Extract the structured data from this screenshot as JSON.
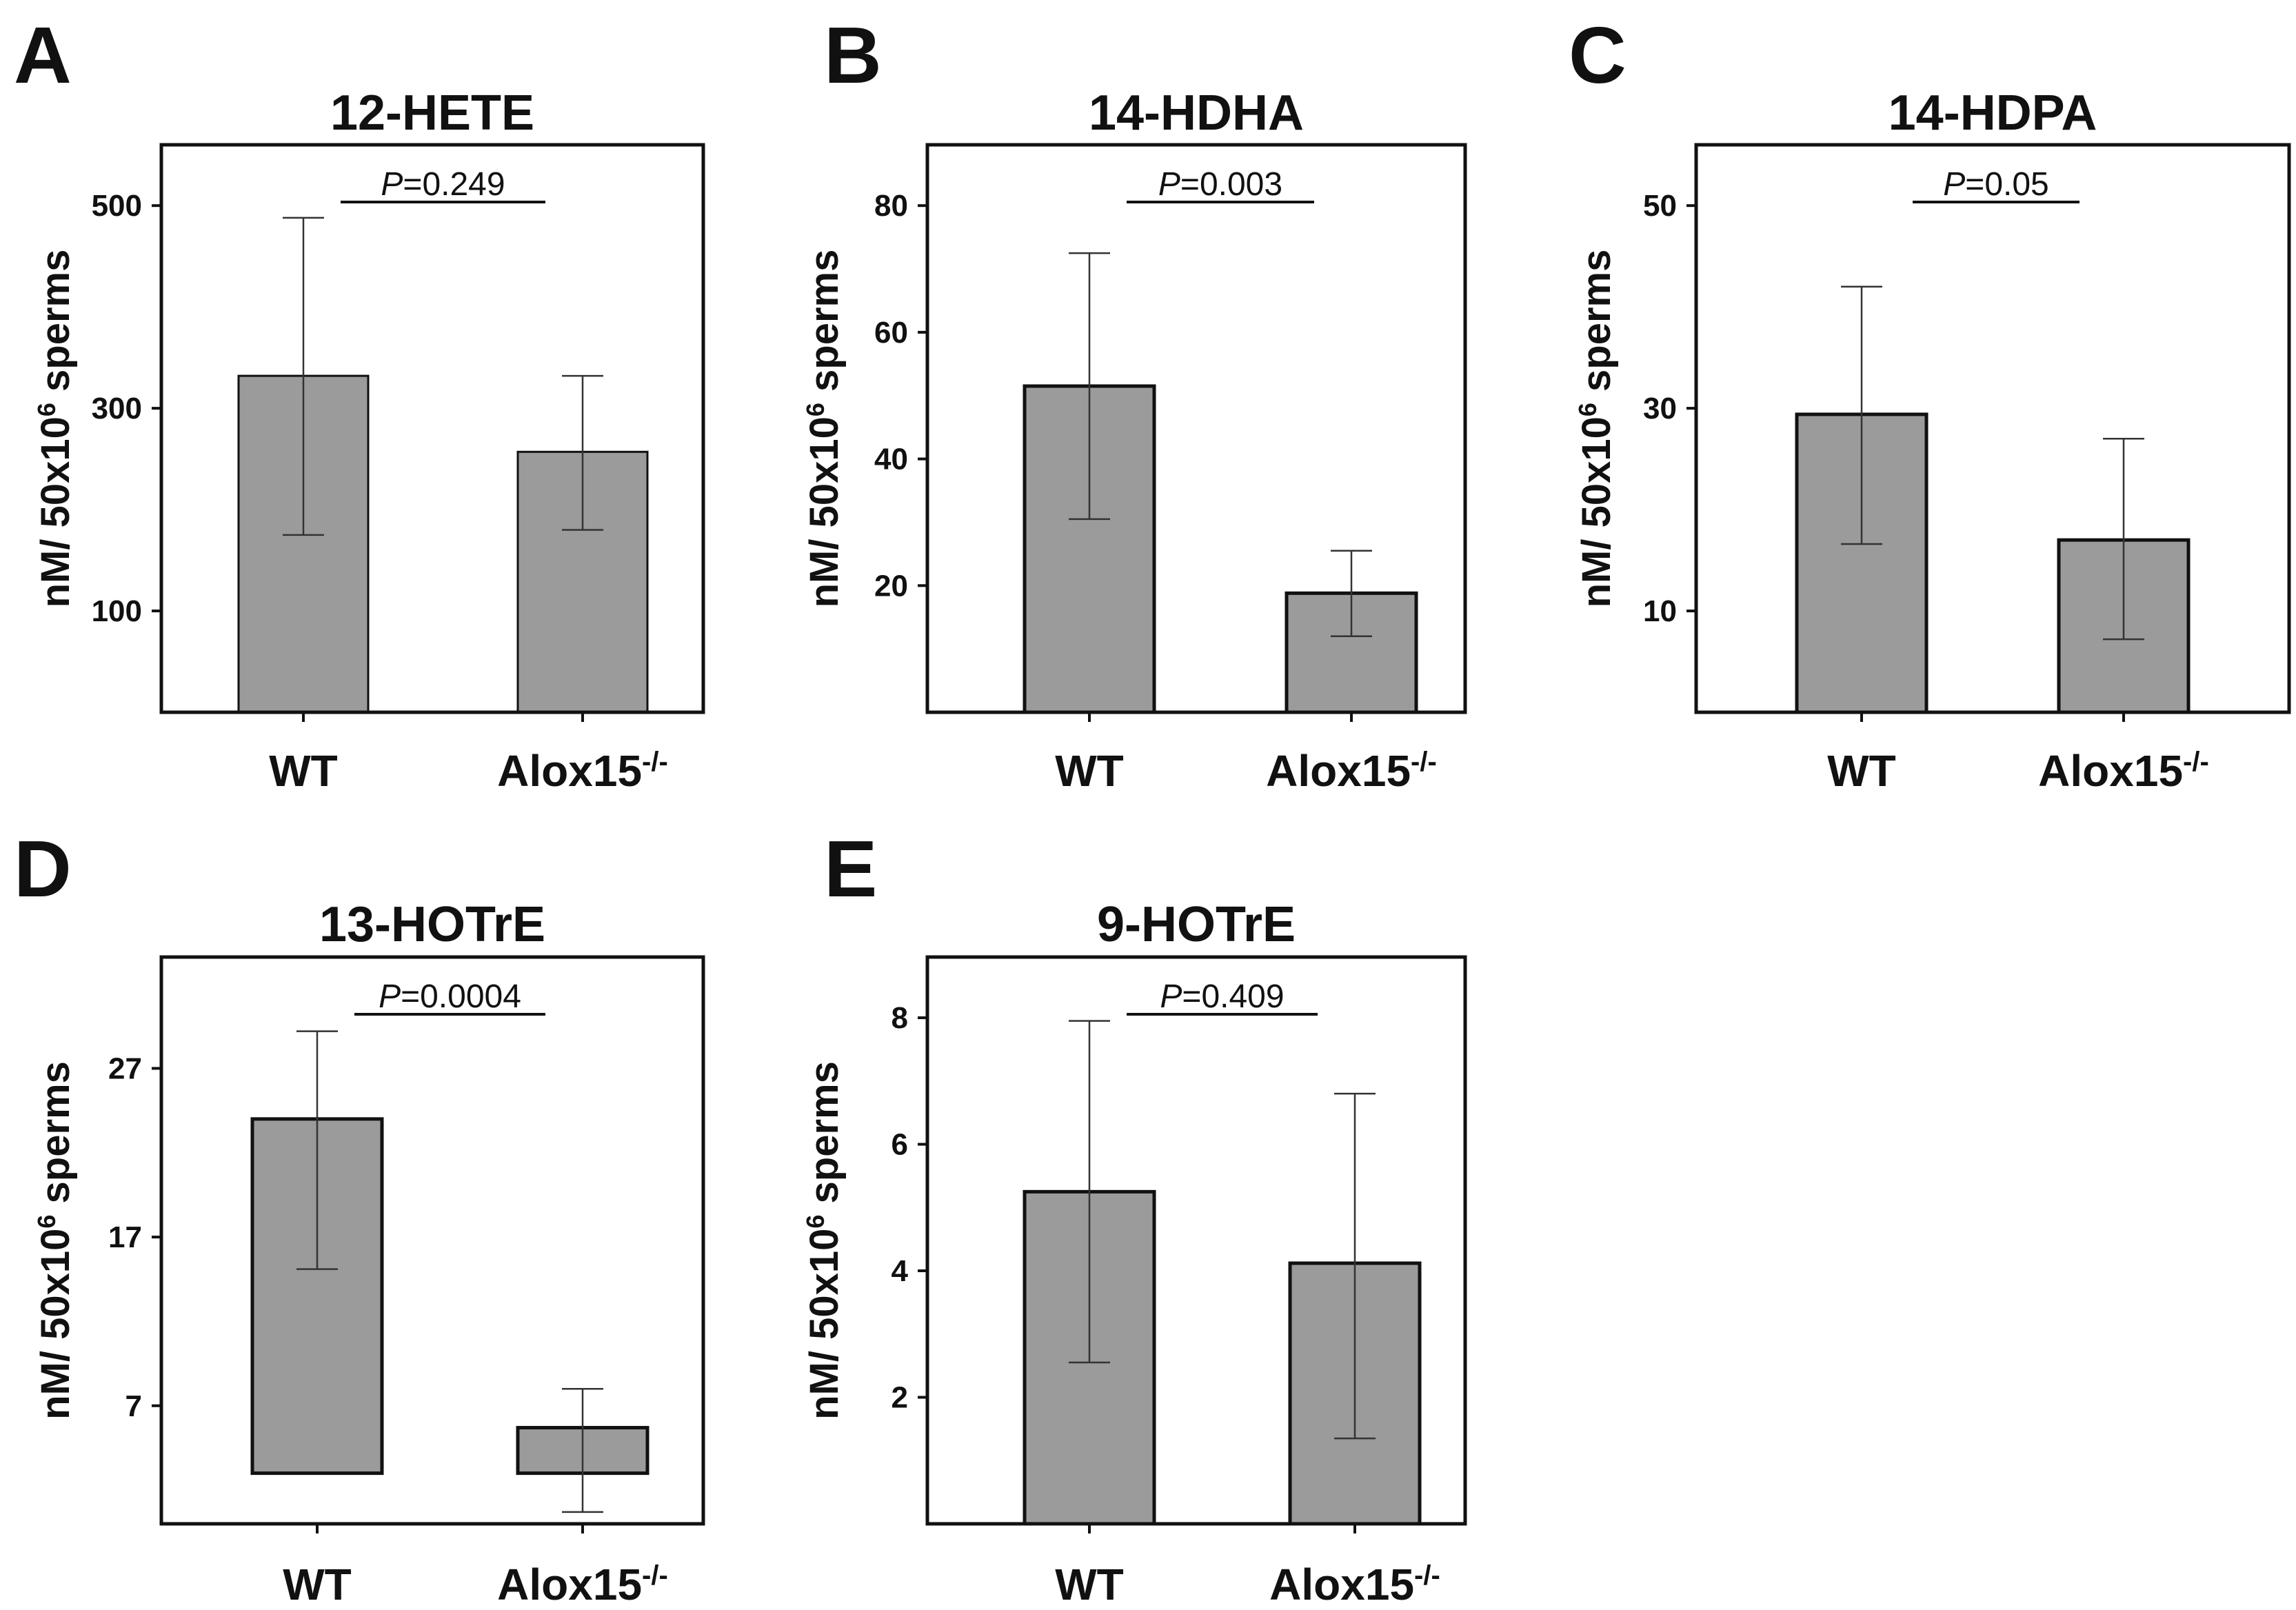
{
  "colors": {
    "bar_fill": "#9b9b9b",
    "axis": "#111111",
    "error_bar": "#333333"
  },
  "chart_data": [
    {
      "panel": "A",
      "type": "bar",
      "title": "12-HETE",
      "ylabel_main": "nM/ 50x10",
      "ylabel_sup": "6",
      "ylabel_tail": " sperms",
      "categories": [
        "WT",
        "Alox15"
      ],
      "category_superscripts": [
        "",
        "-/-"
      ],
      "values": [
        332,
        257
      ],
      "error_upper": [
        488,
        332
      ],
      "error_lower": [
        175,
        180
      ],
      "ylim": [
        0,
        560
      ],
      "yticks": [
        100,
        300,
        500
      ],
      "p_prefix": "P",
      "p_value": "=0.249"
    },
    {
      "panel": "B",
      "type": "bar",
      "title": "14-HDHA",
      "ylabel_main": "nM/ 50x10",
      "ylabel_sup": "6",
      "ylabel_tail": " sperms",
      "categories": [
        "WT",
        "Alox15"
      ],
      "category_superscripts": [
        "",
        "-/-"
      ],
      "values": [
        51.5,
        18.8
      ],
      "error_upper": [
        72.5,
        25.5
      ],
      "error_lower": [
        30.5,
        12.0
      ],
      "ylim": [
        0,
        89.6
      ],
      "yticks": [
        20,
        40,
        60,
        80
      ],
      "p_prefix": "P",
      "p_value": "=0.003"
    },
    {
      "panel": "C",
      "type": "bar",
      "title": "14-HDPA",
      "ylabel_main": "nM/ 50x10",
      "ylabel_sup": "6",
      "ylabel_tail": " sperms",
      "categories": [
        "WT",
        "Alox15"
      ],
      "category_superscripts": [
        "",
        "-/-"
      ],
      "values": [
        29.4,
        17.0
      ],
      "error_upper": [
        42.0,
        27.0
      ],
      "error_lower": [
        16.6,
        7.2
      ],
      "ylim": [
        0,
        56
      ],
      "yticks": [
        10,
        30,
        50
      ],
      "p_prefix": "P",
      "p_value": "=0.05"
    },
    {
      "panel": "D",
      "type": "bar",
      "title": "13-HOTrE",
      "ylabel_main": "nM/ 50x10",
      "ylabel_sup": "6",
      "ylabel_tail": " sperms",
      "categories": [
        "WT",
        "Alox15"
      ],
      "category_superscripts": [
        "",
        "-/-"
      ],
      "bar_bottom": [
        3.0,
        3.0
      ],
      "values": [
        24.0,
        5.7
      ],
      "error_upper": [
        29.2,
        8.0
      ],
      "error_lower": [
        15.1,
        0.7
      ],
      "ylim": [
        0,
        33.6
      ],
      "yticks": [
        7,
        17,
        27
      ],
      "p_prefix": "P",
      "p_value": "=0.0004"
    },
    {
      "panel": "E",
      "type": "bar",
      "title": "9-HOTrE",
      "ylabel_main": "nM/ 50x10",
      "ylabel_sup": "6",
      "ylabel_tail": " sperms",
      "categories": [
        "WT",
        "Alox15"
      ],
      "category_superscripts": [
        "",
        "-/-"
      ],
      "values": [
        5.25,
        4.12
      ],
      "error_upper": [
        7.95,
        6.8
      ],
      "error_lower": [
        2.55,
        1.35
      ],
      "ylim": [
        0,
        8.96
      ],
      "yticks": [
        2,
        4,
        6,
        8
      ],
      "p_prefix": "P",
      "p_value": "=0.409"
    }
  ]
}
